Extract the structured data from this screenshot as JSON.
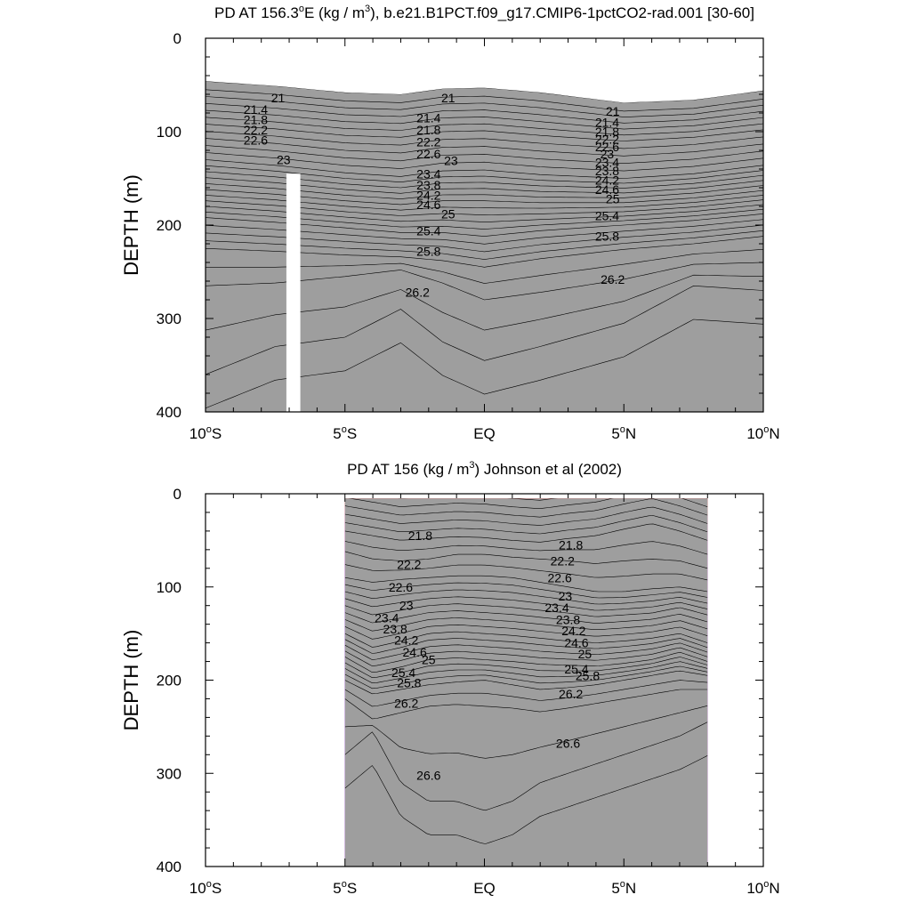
{
  "chart_data": [
    {
      "type": "contour",
      "title_prefix": "PD AT 156.3",
      "title_sup": "o",
      "title_mid": "E (kg / m",
      "title_sup2": "3",
      "title_suffix": "), b.e21.B1PCT.f09_g17.CMIP6-1pctCO2-rad.001 [30-60]",
      "ylabel": "DEPTH (m)",
      "xlim": [
        -10,
        10
      ],
      "ylim": [
        0,
        400
      ],
      "y_inverted": true,
      "yticks": [
        0,
        100,
        200,
        300,
        400
      ],
      "xticks": [
        {
          "value": -10,
          "num": "10",
          "sup": "o",
          "hem": "S"
        },
        {
          "value": -5,
          "num": "5",
          "sup": "o",
          "hem": "S"
        },
        {
          "value": 0,
          "num": "EQ",
          "sup": "",
          "hem": ""
        },
        {
          "value": 5,
          "num": "5",
          "sup": "o",
          "hem": "N"
        },
        {
          "value": 10,
          "num": "10",
          "sup": "o",
          "hem": "N"
        }
      ],
      "data_x_range": [
        -10,
        10
      ],
      "contour_levels": [
        20.8,
        21.0,
        21.2,
        21.4,
        21.6,
        21.8,
        22.0,
        22.2,
        22.4,
        22.6,
        22.8,
        23.0,
        23.2,
        23.4,
        23.6,
        23.8,
        24.0,
        24.2,
        24.4,
        24.6,
        24.8,
        25.0,
        25.2,
        25.4,
        25.6,
        25.8,
        26.0,
        26.2,
        26.4,
        26.6,
        26.8
      ],
      "missing_column_x": [
        -7.1,
        -6.6
      ],
      "missing_column_depth": [
        145,
        400
      ],
      "isopycnal_depths": {
        "x": [
          -10,
          -7.5,
          -5,
          -3,
          -1.5,
          0,
          2,
          5,
          7.5,
          10
        ],
        "21.0": [
          55,
          60,
          67,
          69,
          63,
          62,
          67,
          78,
          75,
          65
        ],
        "22.0": [
          92,
          97,
          104,
          106,
          100,
          99,
          104,
          110,
          106,
          98
        ],
        "23.0": [
          130,
          136,
          144,
          148,
          142,
          141,
          146,
          150,
          145,
          136
        ],
        "24.0": [
          162,
          167,
          174,
          178,
          174,
          174,
          176,
          176,
          171,
          163
        ],
        "25.0": [
          192,
          197,
          203,
          208,
          208,
          212,
          206,
          200,
          195,
          188
        ],
        "25.8": [
          225,
          228,
          232,
          234,
          238,
          245,
          236,
          226,
          220,
          212
        ],
        "26.2": [
          265,
          262,
          255,
          248,
          262,
          280,
          272,
          258,
          242,
          240
        ],
        "26.6": [
          360,
          330,
          320,
          290,
          325,
          345,
          330,
          305,
          265,
          270
        ]
      },
      "labels": [
        {
          "text": "21",
          "x": -7.4,
          "y": 64
        },
        {
          "text": "21.4",
          "x": -8.2,
          "y": 76
        },
        {
          "text": "21.8",
          "x": -8.2,
          "y": 87
        },
        {
          "text": "22.2",
          "x": -8.2,
          "y": 98
        },
        {
          "text": "22.6",
          "x": -8.2,
          "y": 109
        },
        {
          "text": "23",
          "x": -7.2,
          "y": 130
        },
        {
          "text": "21",
          "x": -1.3,
          "y": 64
        },
        {
          "text": "21.4",
          "x": -2.0,
          "y": 85
        },
        {
          "text": "21.8",
          "x": -2.0,
          "y": 98
        },
        {
          "text": "22.2",
          "x": -2.0,
          "y": 111
        },
        {
          "text": "22.6",
          "x": -2.0,
          "y": 124
        },
        {
          "text": "23",
          "x": -1.2,
          "y": 131
        },
        {
          "text": "23.4",
          "x": -2.0,
          "y": 145
        },
        {
          "text": "23.8",
          "x": -2.0,
          "y": 157
        },
        {
          "text": "24.2",
          "x": -2.0,
          "y": 168
        },
        {
          "text": "24.6",
          "x": -2.0,
          "y": 178
        },
        {
          "text": "25",
          "x": -1.3,
          "y": 188
        },
        {
          "text": "25.4",
          "x": -2.0,
          "y": 206
        },
        {
          "text": "25.8",
          "x": -2.0,
          "y": 228
        },
        {
          "text": "26.2",
          "x": -2.4,
          "y": 272
        },
        {
          "text": "21",
          "x": 4.6,
          "y": 78
        },
        {
          "text": "21.4",
          "x": 4.4,
          "y": 90
        },
        {
          "text": "21.8",
          "x": 4.4,
          "y": 100
        },
        {
          "text": "22.2",
          "x": 4.4,
          "y": 108
        },
        {
          "text": "22.6",
          "x": 4.4,
          "y": 116
        },
        {
          "text": "23",
          "x": 4.4,
          "y": 124
        },
        {
          "text": "23.4",
          "x": 4.4,
          "y": 133
        },
        {
          "text": "23.8",
          "x": 4.4,
          "y": 142
        },
        {
          "text": "24.2",
          "x": 4.4,
          "y": 152
        },
        {
          "text": "24.6",
          "x": 4.4,
          "y": 162
        },
        {
          "text": "25",
          "x": 4.6,
          "y": 172
        },
        {
          "text": "25.4",
          "x": 4.4,
          "y": 190
        },
        {
          "text": "25.8",
          "x": 4.4,
          "y": 212
        },
        {
          "text": "26.2",
          "x": 4.6,
          "y": 258
        }
      ]
    },
    {
      "type": "contour",
      "title_prefix": "PD AT 156 (kg / m",
      "title_sup": "3",
      "title_suffix": ") Johnson et al (2002)",
      "ylabel": "DEPTH (m)",
      "xlim": [
        -10,
        10
      ],
      "ylim": [
        0,
        400
      ],
      "y_inverted": true,
      "yticks": [
        0,
        100,
        200,
        300,
        400
      ],
      "xticks": [
        {
          "value": -10,
          "num": "10",
          "sup": "o",
          "hem": "S"
        },
        {
          "value": -5,
          "num": "5",
          "sup": "o",
          "hem": "S"
        },
        {
          "value": 0,
          "num": "EQ",
          "sup": "",
          "hem": ""
        },
        {
          "value": 5,
          "num": "5",
          "sup": "o",
          "hem": "N"
        },
        {
          "value": 10,
          "num": "10",
          "sup": "o",
          "hem": "N"
        }
      ],
      "data_x_range": [
        -5,
        8
      ],
      "data_top_depth": 5,
      "contour_levels": [
        20.8,
        21.0,
        21.2,
        21.4,
        21.6,
        21.8,
        22.0,
        22.2,
        22.4,
        22.6,
        22.8,
        23.0,
        23.2,
        23.4,
        23.6,
        23.8,
        24.0,
        24.2,
        24.4,
        24.6,
        24.8,
        25.0,
        25.2,
        25.4,
        25.6,
        25.8,
        26.0,
        26.2,
        26.4,
        26.6,
        26.8
      ],
      "isopycnal_depths": {
        "x": [
          -5,
          -4,
          -3,
          -2,
          -1,
          0,
          1,
          2,
          3,
          4,
          5,
          6,
          7,
          8
        ],
        "21.8": [
          40,
          45,
          50,
          48,
          46,
          47,
          50,
          52,
          48,
          45,
          38,
          32,
          40,
          50
        ],
        "22.2": [
          62,
          70,
          72,
          70,
          65,
          65,
          68,
          70,
          72,
          75,
          72,
          70,
          72,
          80
        ],
        "22.6": [
          90,
          95,
          92,
          90,
          88,
          88,
          90,
          95,
          100,
          105,
          105,
          102,
          100,
          105
        ],
        "23.4": [
          120,
          130,
          125,
          120,
          118,
          120,
          122,
          125,
          128,
          132,
          130,
          128,
          122,
          130
        ],
        "24.2": [
          150,
          165,
          158,
          150,
          148,
          150,
          152,
          155,
          158,
          160,
          158,
          155,
          150,
          160
        ],
        "25.0": [
          175,
          192,
          186,
          178,
          176,
          178,
          180,
          183,
          184,
          185,
          182,
          178,
          170,
          180
        ],
        "25.8": [
          200,
          215,
          210,
          205,
          202,
          200,
          205,
          210,
          208,
          205,
          200,
          195,
          190,
          195
        ],
        "26.2": [
          220,
          242,
          235,
          228,
          226,
          228,
          230,
          234,
          230,
          225,
          220,
          215,
          210,
          210
        ],
        "26.6": [
          280,
          255,
          310,
          330,
          330,
          340,
          330,
          310,
          300,
          290,
          280,
          270,
          260,
          245
        ]
      },
      "labels": [
        {
          "text": "21.8",
          "x": -2.3,
          "y": 45
        },
        {
          "text": "22.2",
          "x": -2.7,
          "y": 76
        },
        {
          "text": "22.6",
          "x": -3.0,
          "y": 100
        },
        {
          "text": "23",
          "x": -2.8,
          "y": 120
        },
        {
          "text": "23.4",
          "x": -3.5,
          "y": 133
        },
        {
          "text": "23.8",
          "x": -3.2,
          "y": 145
        },
        {
          "text": "24.2",
          "x": -2.8,
          "y": 157
        },
        {
          "text": "24.6",
          "x": -2.5,
          "y": 170
        },
        {
          "text": "25",
          "x": -2.0,
          "y": 178
        },
        {
          "text": "25.4",
          "x": -2.9,
          "y": 192
        },
        {
          "text": "25.8",
          "x": -2.7,
          "y": 203
        },
        {
          "text": "26.2",
          "x": -2.8,
          "y": 225
        },
        {
          "text": "26.6",
          "x": -2.0,
          "y": 302
        },
        {
          "text": "21.8",
          "x": 3.1,
          "y": 55
        },
        {
          "text": "22.2",
          "x": 2.8,
          "y": 72
        },
        {
          "text": "22.6",
          "x": 2.7,
          "y": 90
        },
        {
          "text": "23",
          "x": 2.9,
          "y": 110
        },
        {
          "text": "23.4",
          "x": 2.6,
          "y": 122
        },
        {
          "text": "23.8",
          "x": 3.0,
          "y": 135
        },
        {
          "text": "24.2",
          "x": 3.2,
          "y": 147
        },
        {
          "text": "24.6",
          "x": 3.3,
          "y": 160
        },
        {
          "text": "25",
          "x": 3.6,
          "y": 172
        },
        {
          "text": "25.4",
          "x": 3.3,
          "y": 188
        },
        {
          "text": "25.8",
          "x": 3.7,
          "y": 195
        },
        {
          "text": "26.2",
          "x": 3.1,
          "y": 215
        },
        {
          "text": "26.6",
          "x": 3.0,
          "y": 268
        }
      ]
    }
  ]
}
